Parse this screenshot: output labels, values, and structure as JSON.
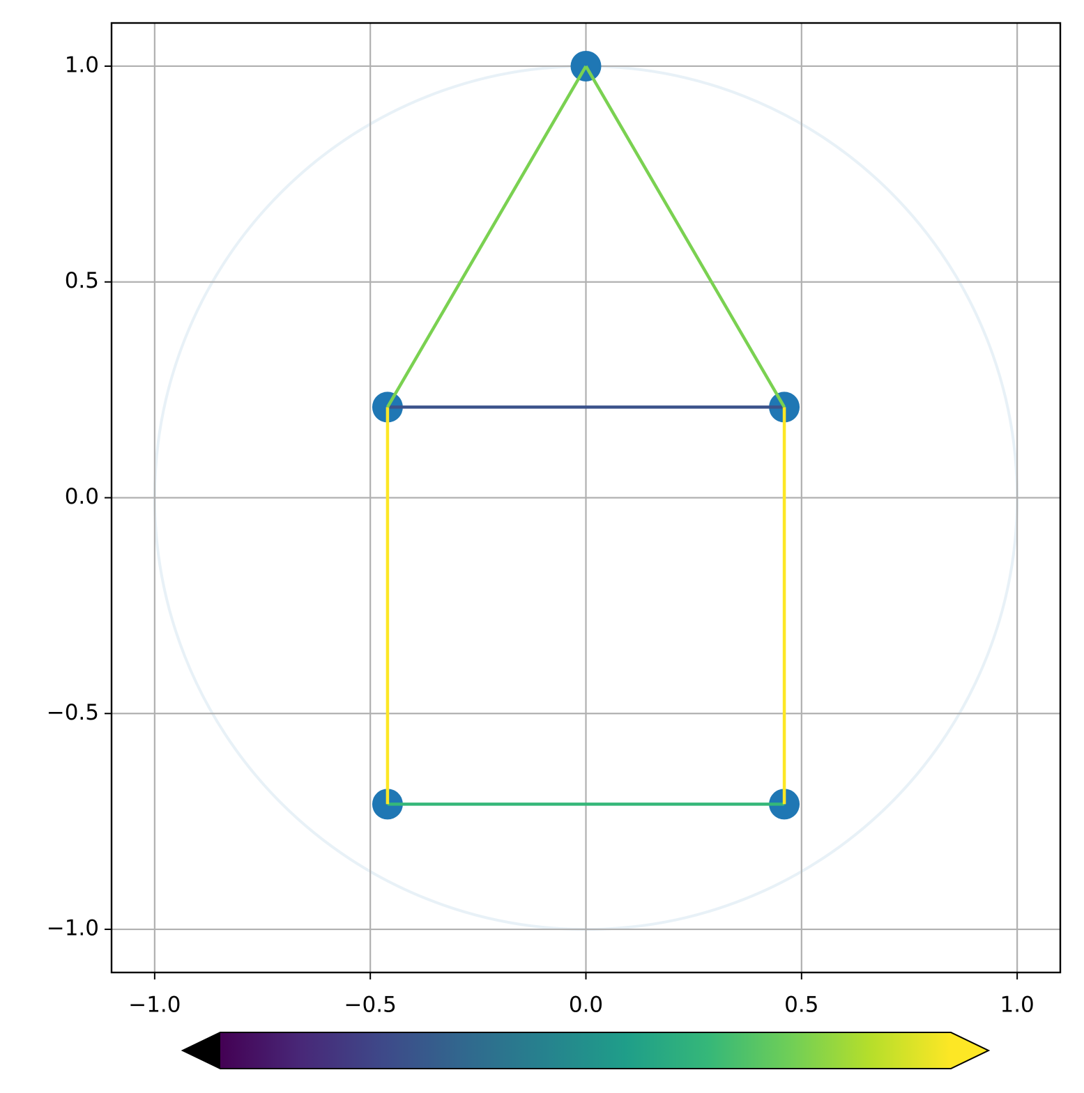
{
  "chart_data": {
    "type": "scatter",
    "xlim": [
      -1.1,
      1.1
    ],
    "ylim": [
      -1.1,
      1.1
    ],
    "xticks": [
      {
        "value": -1,
        "label": "−1.0"
      },
      {
        "value": -0.5,
        "label": "−0.5"
      },
      {
        "value": 0,
        "label": "0.0"
      },
      0.5,
      {
        "value": 1,
        "label": "1.0"
      }
    ],
    "yticks": [
      {
        "value": -1,
        "label": "−1.0"
      },
      {
        "value": -0.5,
        "label": "−0.5"
      },
      {
        "value": 0,
        "label": "0.0"
      },
      0.5,
      {
        "value": 1,
        "label": "1.0"
      }
    ],
    "grid": true,
    "series": [
      {
        "color": "#1f77b4",
        "x": [
          0,
          -0.46,
          0.46,
          -0.46,
          0.46
        ],
        "values": [
          1,
          0.21,
          0.21,
          -0.71,
          -0.71
        ]
      }
    ],
    "segments": [
      {
        "x": [
          -0.46,
          0.46
        ],
        "y": [
          0.21,
          0.21
        ],
        "color": "#3b528b"
      },
      {
        "x": [
          -0.46,
          0.46
        ],
        "y": [
          -0.71,
          -0.71
        ],
        "color": "#35b779"
      },
      {
        "x": [
          -0.46,
          -0.46
        ],
        "y": [
          0.21,
          -0.71
        ],
        "color": "#fde725"
      },
      {
        "x": [
          0.46,
          0.46
        ],
        "y": [
          0.21,
          -0.71
        ],
        "color": "#fde725"
      },
      {
        "x": [
          -0.46,
          0
        ],
        "y": [
          0.21,
          1
        ],
        "color": "#7ad151"
      },
      {
        "x": [
          0.46,
          0
        ],
        "y": [
          0.21,
          1
        ],
        "color": "#7ad151"
      }
    ],
    "circle": {
      "radius": 1,
      "color": "#1f77b4",
      "opacity": 0.1
    },
    "colorbar": {
      "colors": [
        "#440154",
        "#482878",
        "#3e4989",
        "#31688e",
        "#26828e",
        "#1f9e89",
        "#35b779",
        "#6ece58",
        "#b5de2b",
        "#fde725"
      ],
      "extend": "both",
      "under_color": "#000000",
      "over_color": "#fde725"
    }
  }
}
